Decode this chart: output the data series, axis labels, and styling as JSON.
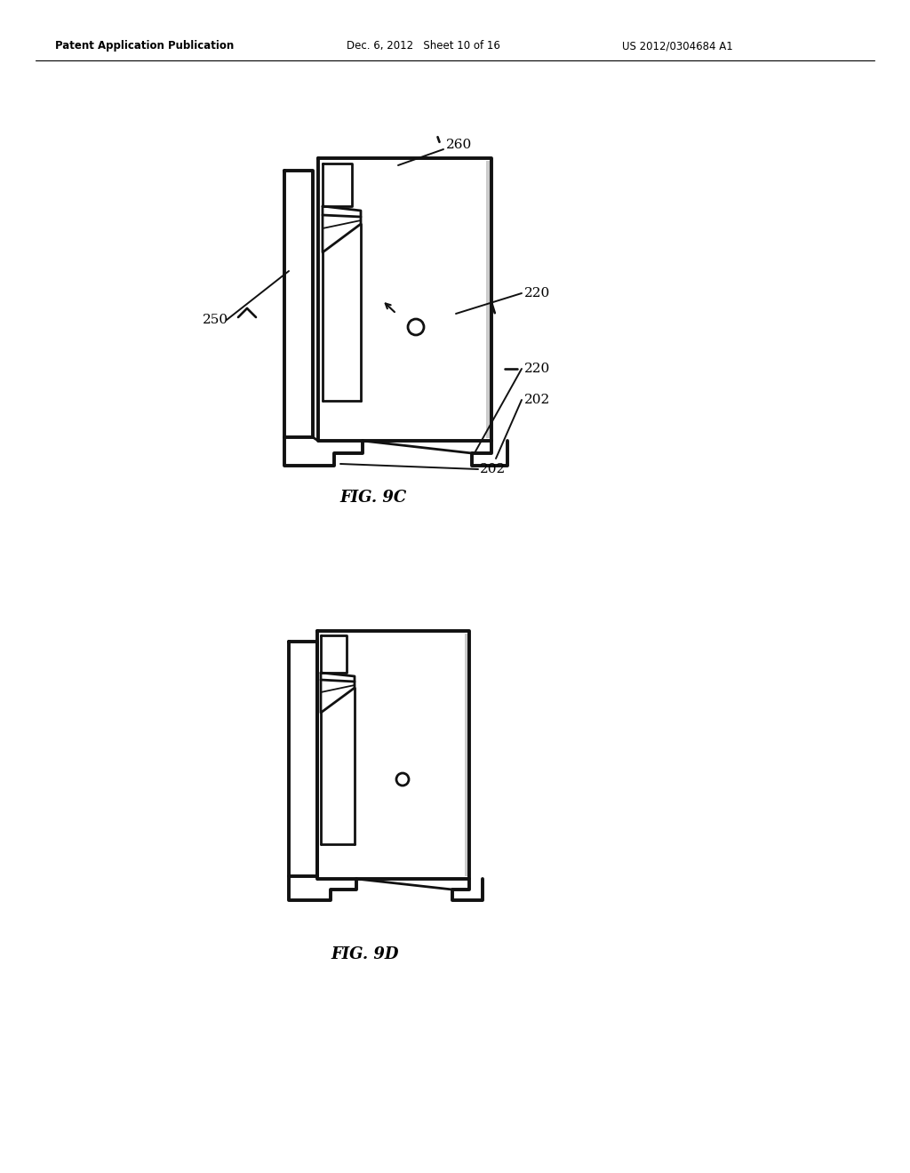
{
  "background_color": "#ffffff",
  "header_left": "Patent Application Publication",
  "header_mid": "Dec. 6, 2012   Sheet 10 of 16",
  "header_right": "US 2012/0304684 A1",
  "fig9c_label": "FIG. 9C",
  "fig9d_label": "FIG. 9D",
  "label_260": "260",
  "label_250": "250",
  "label_220a": "220",
  "label_220b": "220",
  "label_202a": "202",
  "label_202b": "202",
  "lw_thick": 2.8,
  "lw_med": 2.0,
  "lw_thin": 1.3,
  "lw_leader": 1.4
}
